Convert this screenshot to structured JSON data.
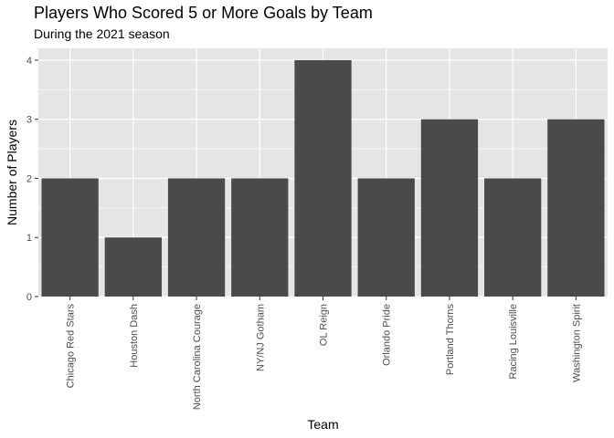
{
  "chart_data": {
    "type": "bar",
    "title": "Players Who Scored 5 or More Goals by Team",
    "subtitle": "During the 2021 season",
    "xlabel": "Team",
    "ylabel": "Number of Players",
    "categories": [
      "Chicago Red Stars",
      "Houston Dash",
      "North Carolina Courage",
      "NY/NJ Gotham",
      "OL Reign",
      "Orlando Pride",
      "Portland Thorns",
      "Racing Louisville",
      "Washington Spirit"
    ],
    "values": [
      2,
      1,
      2,
      2,
      4,
      2,
      3,
      2,
      3
    ],
    "yticks": [
      "0",
      "1",
      "2",
      "3",
      "4"
    ],
    "ylim": [
      0,
      4.2
    ],
    "grid": true,
    "legend": "none",
    "colors": {
      "panel": "#e5e5e5",
      "grid": "#ffffff",
      "bar": "#4a4a4a",
      "tick_text": "#4d4d4d",
      "tick_mark": "#333333"
    }
  }
}
